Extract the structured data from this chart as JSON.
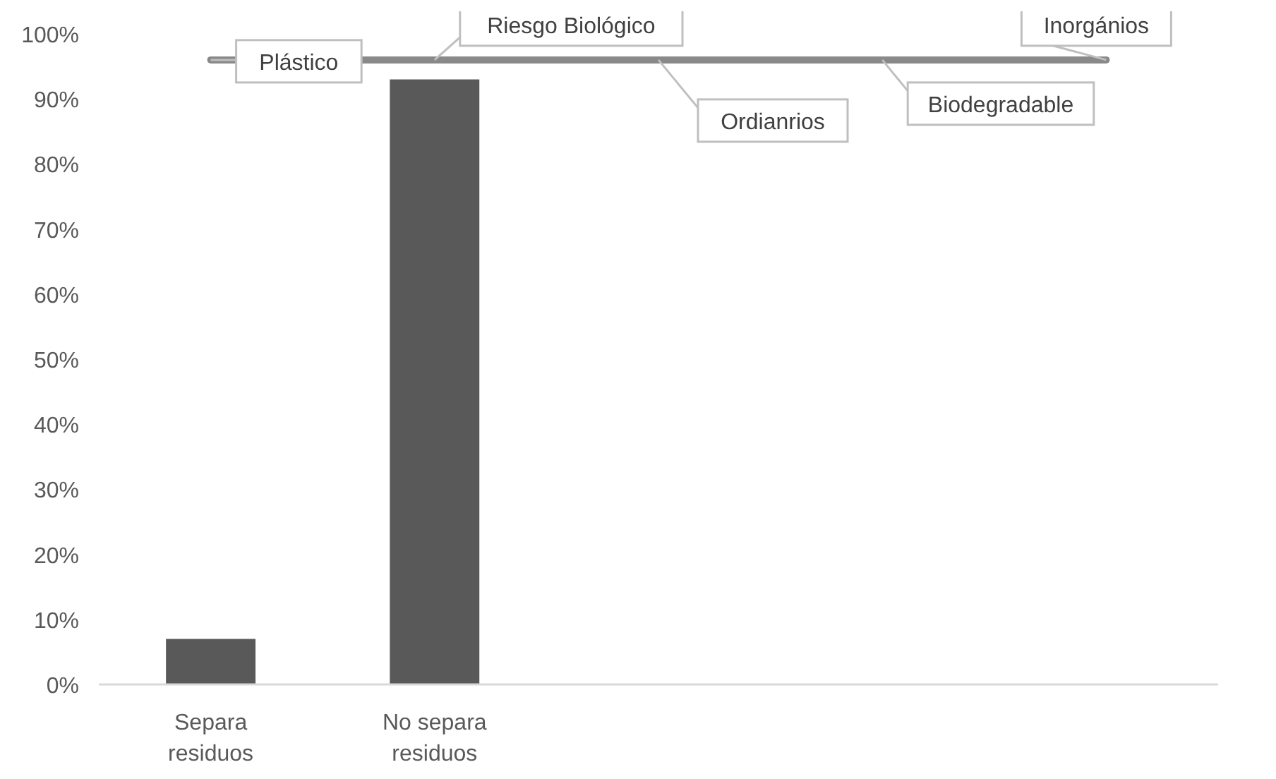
{
  "chart_data": {
    "type": "bar",
    "categories": [
      "Separa residuos",
      "No separa residuos",
      null,
      null,
      null
    ],
    "series": [
      {
        "color": "#595959",
        "values": [
          7,
          93,
          null,
          null,
          null
        ]
      },
      {
        "type": "line",
        "color": "#898989",
        "values": [
          96,
          96,
          96,
          96,
          96
        ]
      }
    ],
    "annotations": [
      {
        "text": "Plástico",
        "y": 96
      },
      {
        "text": "Riesgo Biológico",
        "y": 96
      },
      {
        "text": "Ordianrios",
        "y": 96
      },
      {
        "text": "Biodegradable",
        "y": 96
      },
      "Inorgánios"
    ],
    "ylim": [
      0,
      100
    ],
    "yticks": [
      {
        "value": 0,
        "label": "0%"
      },
      {
        "value": 10,
        "label": "10%"
      },
      {
        "value": 20,
        "label": "20%"
      },
      {
        "value": 30,
        "label": "30%"
      },
      {
        "value": 40,
        "label": "40%"
      },
      {
        "value": 50,
        "label": "50%"
      },
      {
        "value": 60,
        "label": "60%"
      },
      {
        "value": 70,
        "label": "70%"
      },
      {
        "value": 80,
        "label": "80%"
      },
      {
        "value": 90,
        "label": "90%"
      },
      {
        "value": 100,
        "label": "100%"
      }
    ],
    "grid": false
  }
}
